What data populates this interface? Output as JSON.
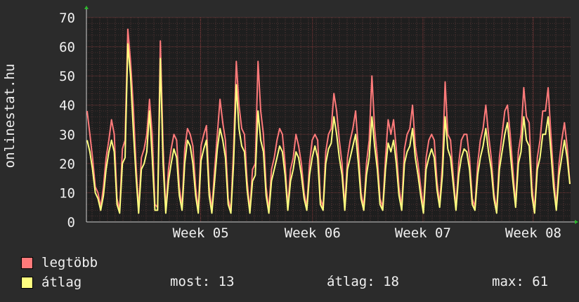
{
  "chart_data": {
    "type": "line",
    "ylabel": "onlinestat.hu",
    "ylim": [
      0,
      70
    ],
    "yticks": [
      "0",
      "10",
      "20",
      "30",
      "40",
      "50",
      "60",
      "70"
    ],
    "xticks": [
      "Week 05",
      "Week 06",
      "Week 07",
      "Week 08"
    ],
    "series": [
      {
        "name": "legtöbb",
        "color": "#ff7a7a",
        "values": [
          38,
          30,
          22,
          12,
          10,
          5,
          12,
          22,
          28,
          35,
          30,
          8,
          4,
          25,
          28,
          66,
          55,
          40,
          20,
          4,
          22,
          25,
          30,
          42,
          30,
          6,
          5,
          62,
          26,
          4,
          18,
          25,
          30,
          28,
          12,
          5,
          25,
          32,
          30,
          26,
          12,
          4,
          26,
          30,
          33,
          12,
          4,
          18,
          30,
          42,
          34,
          28,
          8,
          4,
          25,
          55,
          40,
          32,
          30,
          14,
          4,
          18,
          20,
          55,
          38,
          30,
          12,
          4,
          18,
          22,
          28,
          32,
          30,
          20,
          5,
          18,
          22,
          30,
          26,
          20,
          10,
          5,
          20,
          28,
          30,
          28,
          8,
          5,
          24,
          30,
          32,
          44,
          38,
          28,
          20,
          5,
          22,
          28,
          32,
          38,
          25,
          10,
          5,
          20,
          28,
          50,
          32,
          22,
          8,
          5,
          22,
          35,
          30,
          35,
          25,
          12,
          5,
          25,
          30,
          32,
          40,
          26,
          20,
          12,
          4,
          22,
          28,
          30,
          28,
          14,
          6,
          20,
          48,
          30,
          28,
          16,
          5,
          20,
          28,
          30,
          30,
          22,
          8,
          5,
          20,
          28,
          32,
          40,
          30,
          22,
          10,
          4,
          22,
          30,
          38,
          40,
          30,
          18,
          6,
          24,
          30,
          46,
          36,
          34,
          12,
          4,
          22,
          28,
          38,
          38,
          46,
          30,
          16,
          5,
          20,
          28,
          34,
          26,
          13
        ]
      },
      {
        "name": "átlag",
        "color": "#ffff80",
        "values": [
          28,
          24,
          18,
          10,
          8,
          4,
          9,
          18,
          24,
          28,
          24,
          6,
          3,
          20,
          22,
          61,
          50,
          32,
          16,
          3,
          18,
          20,
          24,
          38,
          22,
          4,
          4,
          56,
          20,
          3,
          14,
          20,
          25,
          22,
          9,
          4,
          20,
          28,
          26,
          20,
          9,
          3,
          21,
          25,
          28,
          9,
          3,
          14,
          25,
          32,
          28,
          22,
          6,
          3,
          20,
          47,
          32,
          26,
          24,
          11,
          3,
          14,
          16,
          38,
          28,
          24,
          9,
          3,
          14,
          18,
          22,
          26,
          24,
          16,
          4,
          14,
          18,
          24,
          22,
          16,
          8,
          4,
          16,
          22,
          26,
          22,
          6,
          4,
          20,
          25,
          27,
          36,
          30,
          22,
          16,
          4,
          18,
          22,
          26,
          30,
          20,
          8,
          4,
          16,
          22,
          36,
          26,
          18,
          6,
          4,
          18,
          27,
          24,
          28,
          20,
          9,
          4,
          20,
          24,
          26,
          32,
          22,
          16,
          9,
          3,
          18,
          22,
          25,
          22,
          11,
          5,
          16,
          36,
          25,
          22,
          13,
          4,
          16,
          22,
          25,
          24,
          18,
          6,
          4,
          16,
          22,
          26,
          32,
          24,
          18,
          8,
          3,
          18,
          24,
          30,
          34,
          24,
          14,
          5,
          20,
          24,
          36,
          28,
          26,
          9,
          3,
          18,
          22,
          30,
          30,
          36,
          24,
          12,
          4,
          16,
          22,
          28,
          22,
          13
        ]
      }
    ],
    "grid": true
  },
  "legend": [
    {
      "label": "legtöbb",
      "color": "#ff7a7a"
    },
    {
      "label": "átlag",
      "color": "#ffff80"
    }
  ],
  "stats": {
    "now": "most: 13",
    "avg": "átlag: 18",
    "max": "max: 61"
  }
}
